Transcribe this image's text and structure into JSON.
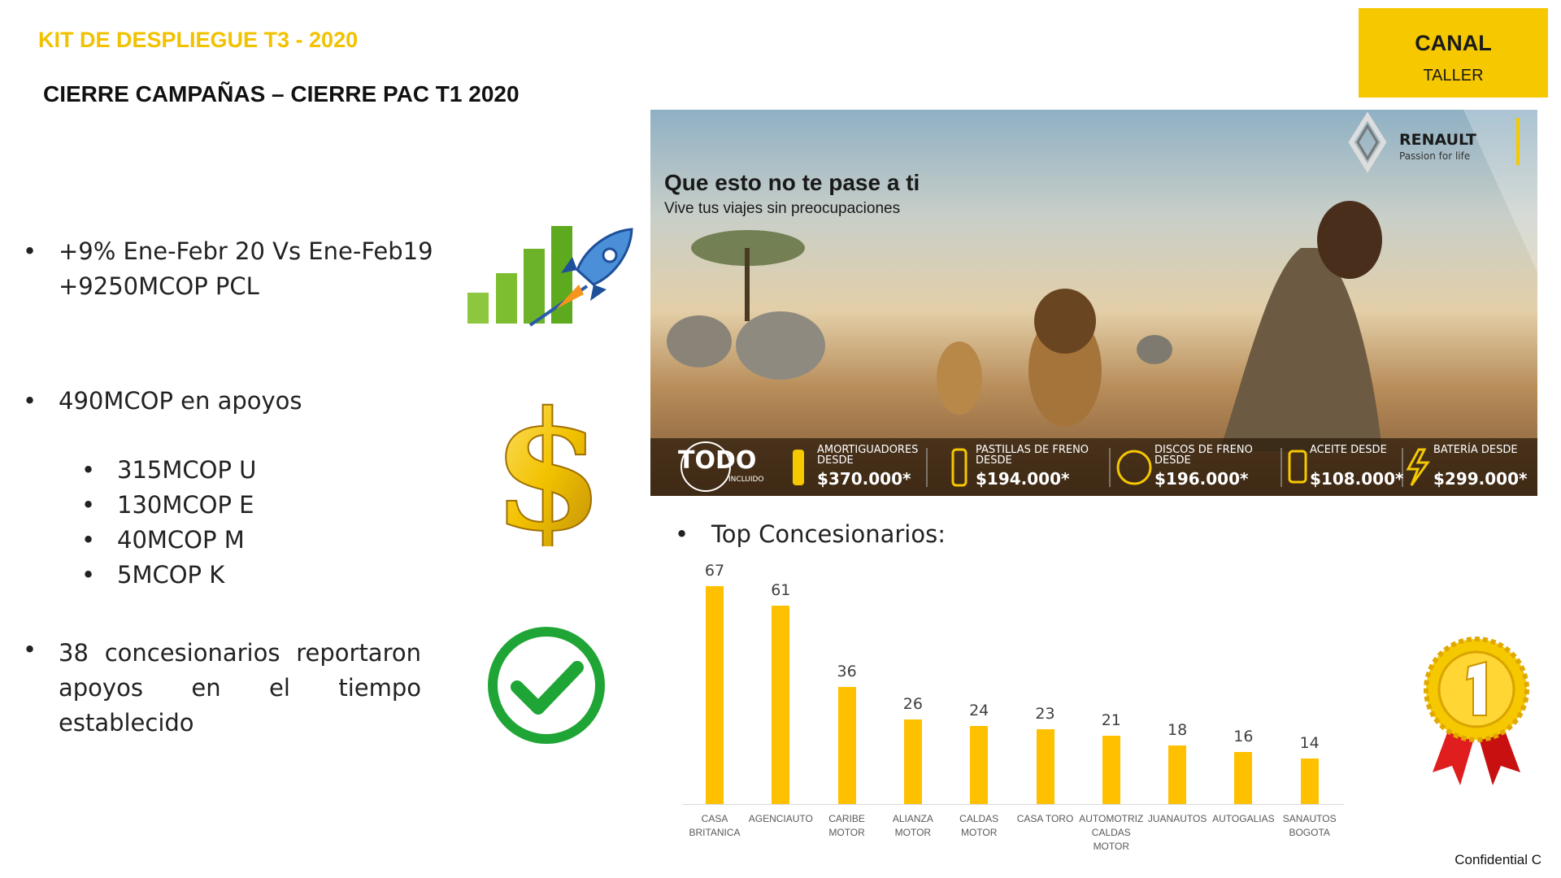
{
  "header": {
    "title": "KIT DE DESPLIEGUE T3 - 2020",
    "subtitle": "CIERRE CAMPAÑAS – CIERRE PAC T1 2020"
  },
  "channel": {
    "title": "CANAL",
    "subtitle": "TALLER"
  },
  "bullets": [
    {
      "lines": [
        "+9% Ene-Febr 20 Vs Ene-Feb19",
        "+9250MCOP PCL"
      ]
    },
    {
      "text": "490MCOP en apoyos",
      "items": [
        "315MCOP U",
        "130MCOP E",
        "40MCOP M",
        "5MCOP K"
      ]
    },
    {
      "text": "38 concesionarios reportaron apoyos en el tiempo establecido"
    }
  ],
  "ad": {
    "headline": "Que esto no te pase a ti",
    "subheadline": "Vive tus viajes sin preocupaciones",
    "brand": "RENAULT",
    "tagline": "Passion for life",
    "badge": "TODO",
    "badge_sub": "INCLUIDO",
    "offers": [
      {
        "label": "AMORTIGUADORES DESDE",
        "price": "$370.000*"
      },
      {
        "label": "PASTILLAS DE FRENO DESDE",
        "price": "$194.000*"
      },
      {
        "label": "DISCOS DE FRENO DESDE",
        "price": "$196.000*"
      },
      {
        "label": "ACEITE DESDE",
        "price": "$108.000*"
      },
      {
        "label": "BATERÍA DESDE",
        "price": "$299.000*"
      }
    ]
  },
  "chart_data": {
    "type": "bar",
    "title": "Top Concesionarios:",
    "categories": [
      "CASA BRITANICA",
      "AGENCIAUTO",
      "CARIBE MOTOR",
      "ALIANZA MOTOR",
      "CALDAS MOTOR",
      "CASA TORO",
      "AUTOMOTRIZ CALDAS MOTOR",
      "JUANAUTOS",
      "AUTOGALIAS",
      "SANAUTOS BOGOTA"
    ],
    "values": [
      67,
      61,
      36,
      26,
      24,
      23,
      21,
      18,
      16,
      14
    ],
    "color": "#FFC000"
  },
  "footer": "Confidential C"
}
